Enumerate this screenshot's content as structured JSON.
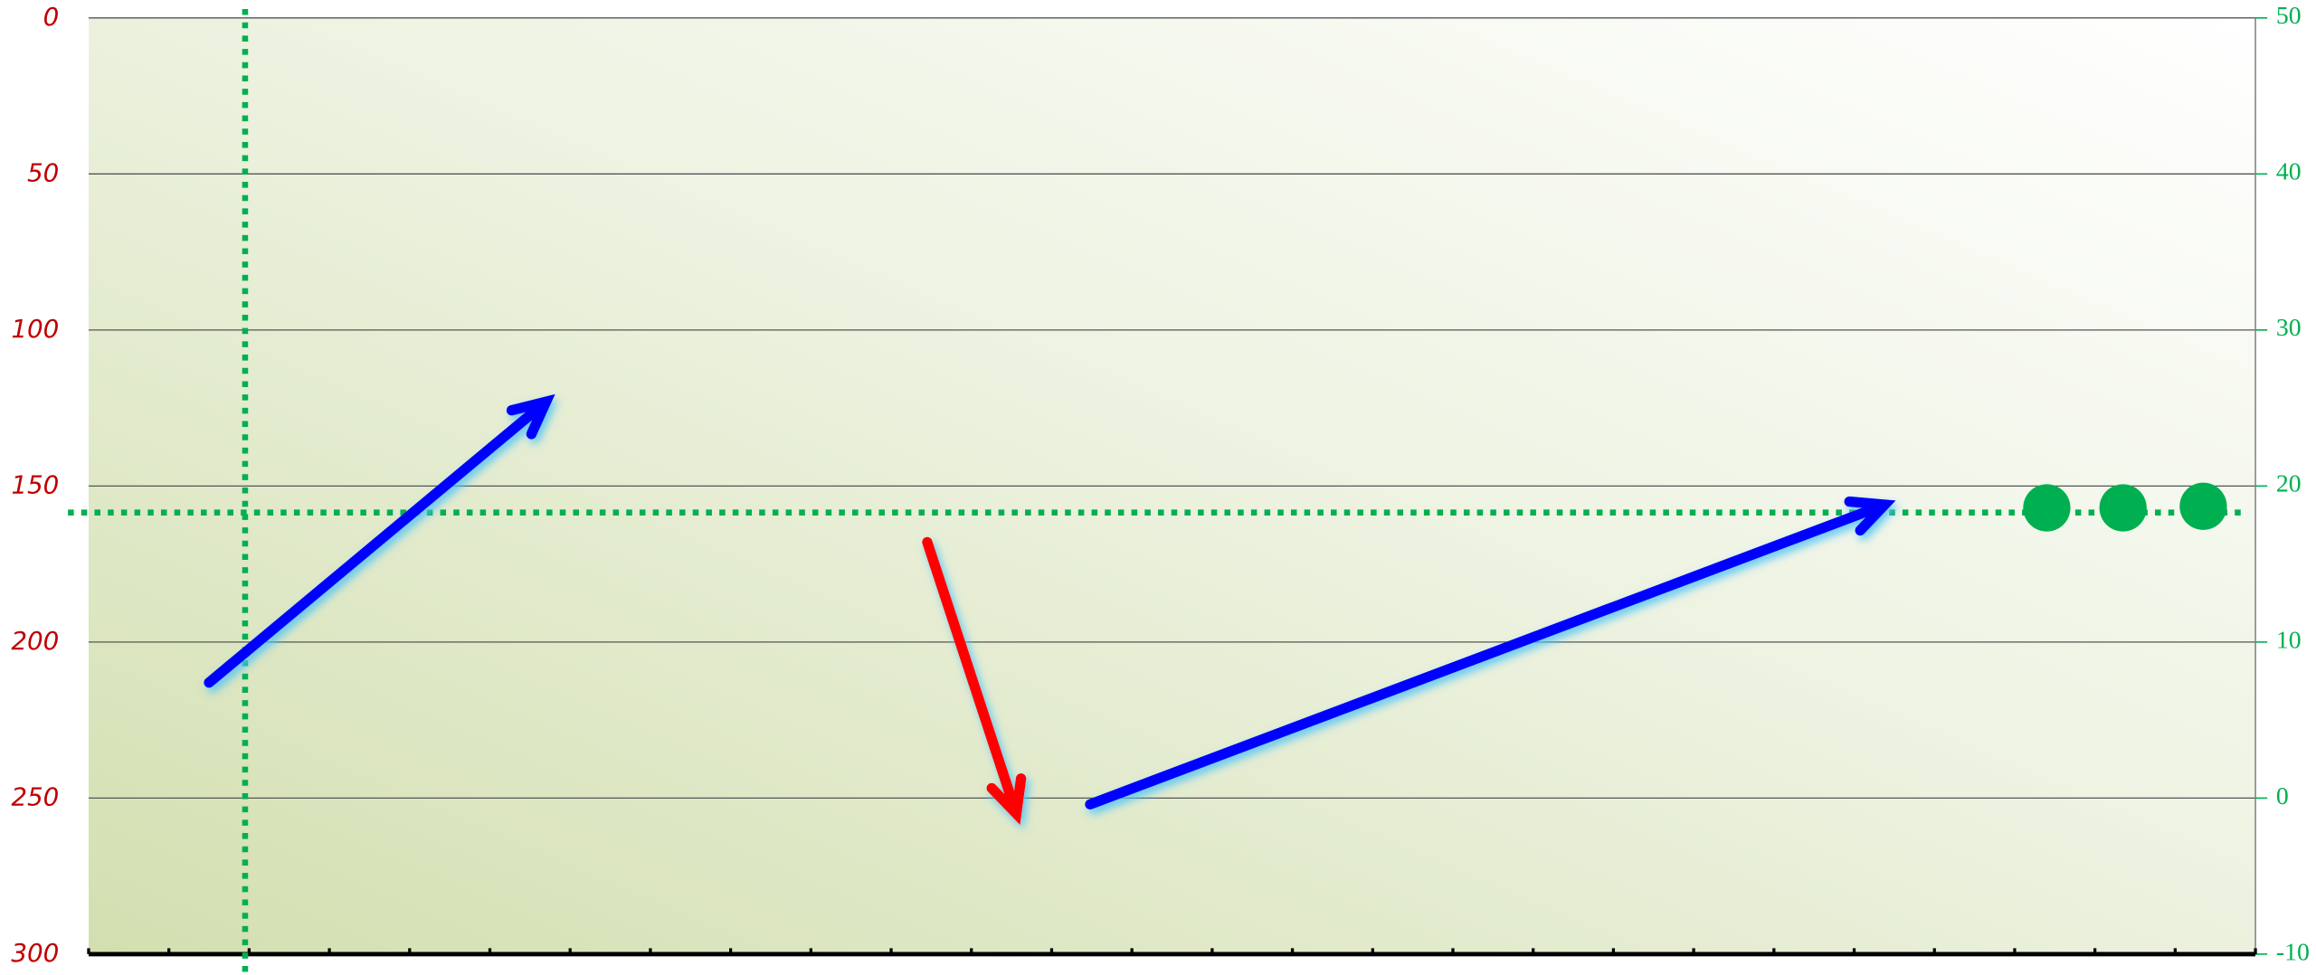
{
  "chart_data": {
    "type": "scatter",
    "xlim": [
      0,
      27
    ],
    "xticks": [
      0,
      1,
      2,
      3,
      4,
      5,
      6,
      7,
      8,
      9,
      10,
      11,
      12,
      13,
      14,
      15,
      16,
      17,
      18,
      19,
      20,
      21,
      22,
      23,
      24,
      25,
      26,
      27
    ],
    "ylim": [
      300,
      0
    ],
    "yticks": [
      0,
      50,
      100,
      150,
      200,
      250,
      300
    ],
    "y2lim": [
      -10,
      50
    ],
    "y2ticks": [
      -10,
      0,
      10,
      20,
      30,
      40,
      50
    ],
    "grid": true,
    "series": [
      {
        "color": "#00b050",
        "axis": "y2",
        "x": [
          24.4,
          25.35,
          26.35
        ],
        "values": [
          18.6,
          18.6,
          18.7
        ]
      }
    ],
    "arrows": [
      {
        "color": "#0000ff",
        "x": [
          1.5,
          5.7
        ],
        "y": [
          213,
          123
        ]
      },
      {
        "color": "#ff0000",
        "x": [
          10.45,
          11.56
        ],
        "y": [
          168,
          255
        ]
      },
      {
        "color": "#0000ff",
        "x": [
          12.48,
          22.38
        ],
        "y": [
          252,
          156
        ]
      }
    ],
    "vlines": [
      {
        "value": 1.95,
        "color": "#00b050"
      }
    ],
    "hlines": [
      {
        "value": 18.3,
        "axis": "y2",
        "color": "#00b050"
      }
    ]
  }
}
